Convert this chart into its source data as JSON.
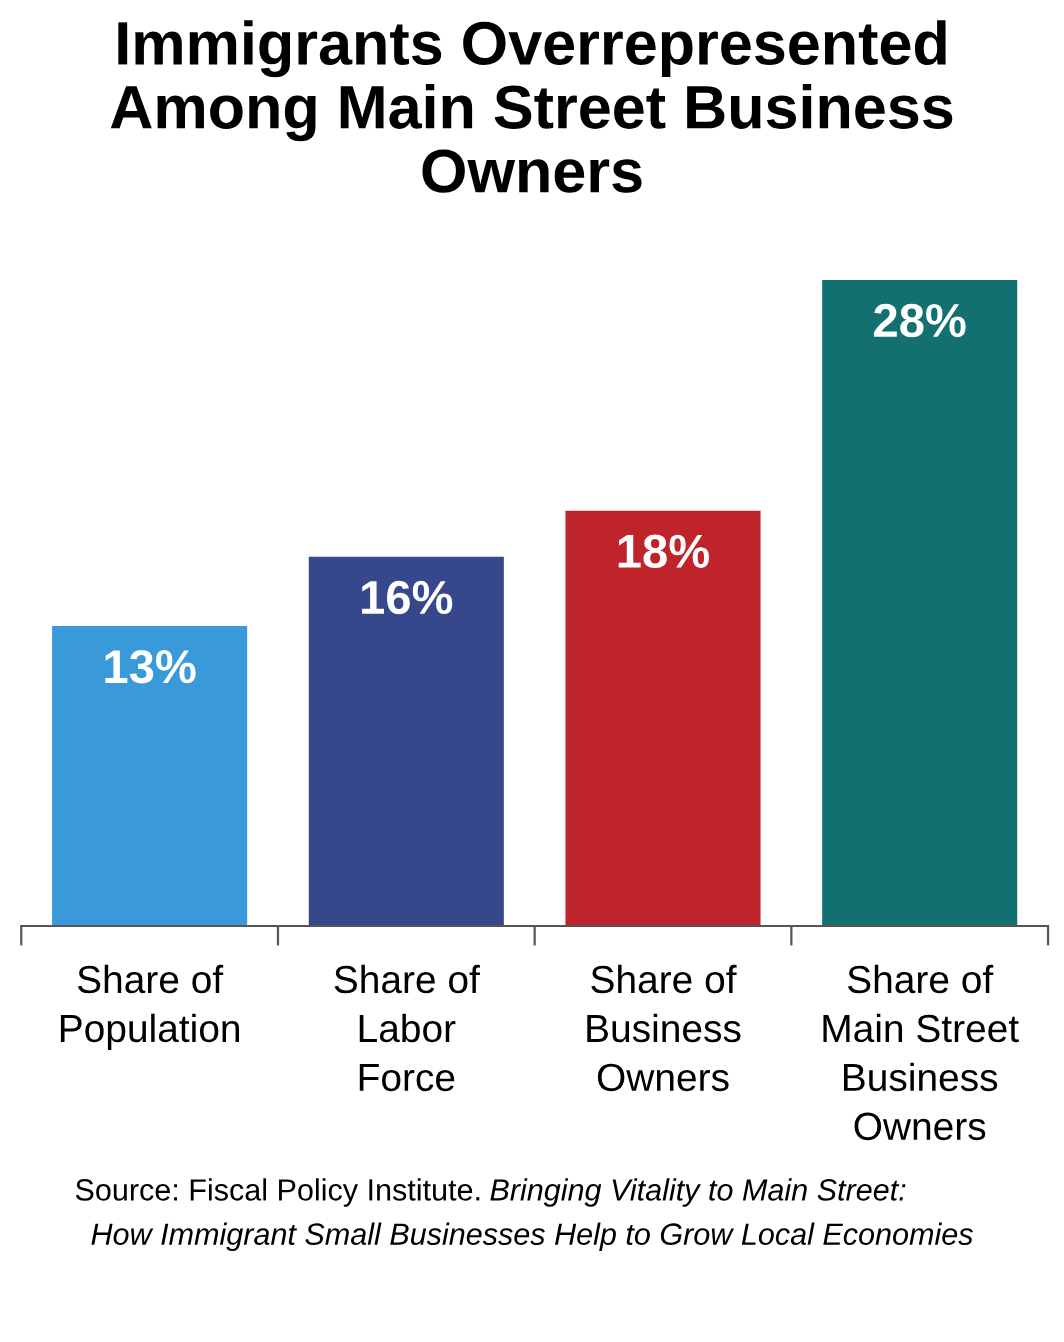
{
  "chart_data": {
    "type": "bar",
    "title": "Immigrants Overrepresented\nAmong Main Street Business\nOwners",
    "categories": [
      "Share of\nPopulation",
      "Share of\nLabor\nForce",
      "Share of\nBusiness\nOwners",
      "Share of\nMain Street\nBusiness\nOwners"
    ],
    "values": [
      13,
      16,
      18,
      28
    ],
    "colors": [
      "#3a9ad9",
      "#36478c",
      "#c0242b",
      "#137070"
    ],
    "value_labels": [
      "13%",
      "16%",
      "18%",
      "28%"
    ],
    "annotations": [
      "Source: Fiscal Policy Institute.",
      "Bringing Vitality to Main Street:\nHow Immigrant Small Businesses Help to Grow Local Economies"
    ],
    "grid": false,
    "legend": false
  }
}
